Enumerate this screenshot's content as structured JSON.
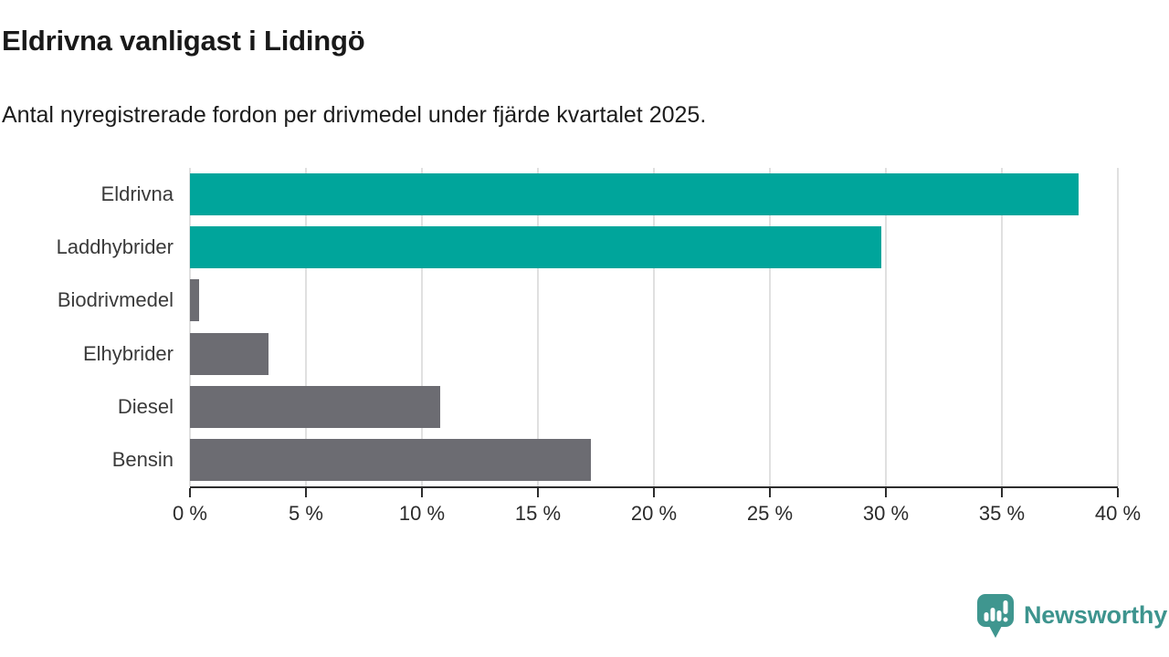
{
  "header": {
    "title": "Eldrivna vanligast i Lidingö",
    "subtitle": "Antal nyregistrerade fordon per drivmedel under fjärde kvartalet 2025."
  },
  "chart_data": {
    "type": "bar",
    "orientation": "horizontal",
    "title": "Eldrivna vanligast i Lidingö",
    "subtitle": "Antal nyregistrerade fordon per drivmedel under fjärde kvartalet 2025.",
    "categories": [
      "Eldrivna",
      "Laddhybrider",
      "Biodrivmedel",
      "Elhybrider",
      "Diesel",
      "Bensin"
    ],
    "values": [
      38.3,
      29.8,
      0.4,
      3.4,
      10.8,
      17.3
    ],
    "unit": "%",
    "bar_colors": [
      "#00a59b",
      "#00a59b",
      "#6c6c72",
      "#6c6c72",
      "#6c6c72",
      "#6c6c72"
    ],
    "highlight_color": "#00a59b",
    "default_color": "#6c6c72",
    "xlim": [
      0,
      40
    ],
    "x_ticks": [
      0,
      5,
      10,
      15,
      20,
      25,
      30,
      35,
      40
    ],
    "x_tick_labels": [
      "0 %",
      "5 %",
      "10 %",
      "15 %",
      "20 %",
      "25 %",
      "30 %",
      "35 %",
      "40 %"
    ],
    "grid": "vertical",
    "gridline_color": "#e0e0e0",
    "legend": "none"
  },
  "footer": {
    "brand": "Newsworthy",
    "brand_color": "#3d948e",
    "logo_icon": "bar-chart-speech-bubble-icon"
  }
}
